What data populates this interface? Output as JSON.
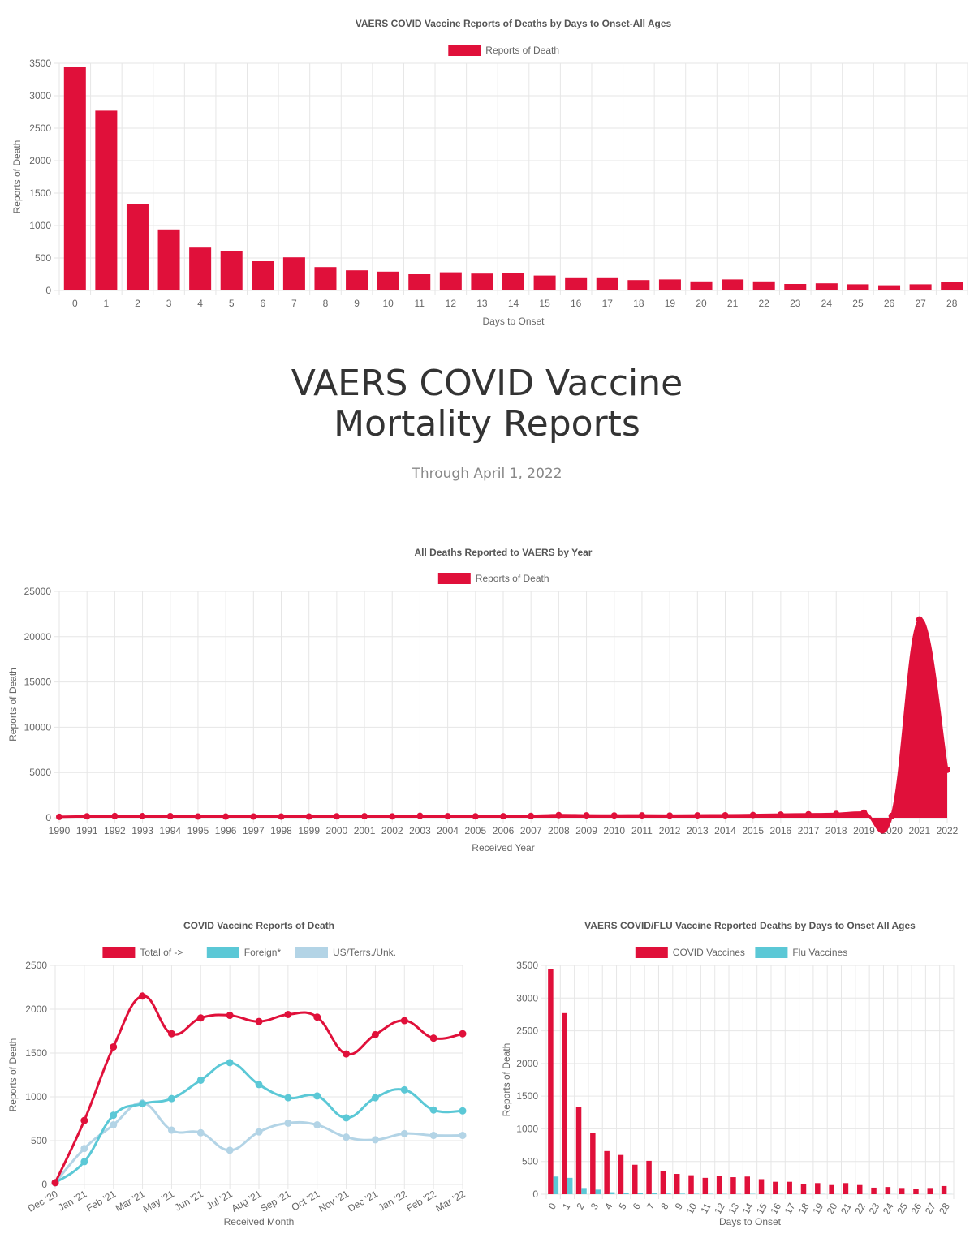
{
  "hero": {
    "title_line1": "VAERS COVID Vaccine",
    "title_line2": "Mortality Reports",
    "subtitle": "Through April 1, 2022"
  },
  "colors": {
    "red": "#e0103a",
    "cyan": "#5bc8d6",
    "light_blue": "#b3d4e6",
    "grid": "#e6e6e6"
  },
  "chart_data": [
    {
      "type": "bar",
      "title": "VAERS COVID Vaccine Reports of Deaths by Days to Onset-All Ages",
      "legend": [
        "Reports of Death"
      ],
      "xlabel": "Days to Onset",
      "ylabel": "Reports of Death",
      "ylim": [
        0,
        3500
      ],
      "yticks": [
        "0",
        "500",
        "1000",
        "1500",
        "2000",
        "2500",
        "3000",
        "3500"
      ],
      "categories": [
        "0",
        "1",
        "2",
        "3",
        "4",
        "5",
        "6",
        "7",
        "8",
        "9",
        "10",
        "11",
        "12",
        "13",
        "14",
        "15",
        "16",
        "17",
        "18",
        "19",
        "20",
        "21",
        "22",
        "23",
        "24",
        "25",
        "26",
        "27",
        "28"
      ],
      "series": [
        {
          "name": "Reports of Death",
          "color": "#e0103a",
          "values": [
            3450,
            2770,
            1330,
            940,
            660,
            600,
            450,
            510,
            360,
            310,
            290,
            250,
            280,
            260,
            270,
            230,
            190,
            190,
            160,
            170,
            140,
            170,
            140,
            100,
            110,
            95,
            80,
            95,
            125
          ]
        }
      ]
    },
    {
      "type": "area",
      "title": "All Deaths Reported to VAERS by Year",
      "legend": [
        "Reports of Death"
      ],
      "xlabel": "Received Year",
      "ylabel": "Reports of Death",
      "ylim": [
        0,
        25000
      ],
      "yticks": [
        "0",
        "5000",
        "10000",
        "15000",
        "20000",
        "25000"
      ],
      "categories": [
        "1990",
        "1991",
        "1992",
        "1993",
        "1994",
        "1995",
        "1996",
        "1997",
        "1998",
        "1999",
        "2000",
        "2001",
        "2002",
        "2003",
        "2004",
        "2005",
        "2006",
        "2007",
        "2008",
        "2009",
        "2010",
        "2011",
        "2012",
        "2013",
        "2014",
        "2015",
        "2016",
        "2017",
        "2018",
        "2019",
        "2020",
        "2021",
        "2022"
      ],
      "series": [
        {
          "name": "Reports of Death",
          "color": "#e0103a",
          "values": [
            100,
            160,
            190,
            180,
            180,
            140,
            130,
            140,
            130,
            140,
            160,
            170,
            150,
            210,
            170,
            160,
            170,
            200,
            290,
            260,
            250,
            260,
            240,
            260,
            270,
            300,
            350,
            380,
            430,
            560,
            200,
            21900,
            5300
          ]
        }
      ]
    },
    {
      "type": "line",
      "title": "COVID Vaccine Reports of Death",
      "legend": [
        "Total of ->",
        "Foreign*",
        "US/Terrs./Unk."
      ],
      "xlabel": "Received Month",
      "ylabel": "Reports of Death",
      "ylim": [
        0,
        2500
      ],
      "yticks": [
        "0",
        "500",
        "1000",
        "1500",
        "2000",
        "2500"
      ],
      "categories": [
        "Dec '20",
        "Jan '21",
        "Feb '21",
        "Mar '21",
        "May '21",
        "Jun '21",
        "Jul '21",
        "Aug '21",
        "Sep '21",
        "Oct '21",
        "Nov '21",
        "Dec '21",
        "Jan '22",
        "Feb '22",
        "Mar '22"
      ],
      "series": [
        {
          "name": "Total of ->",
          "color": "#e0103a",
          "values": [
            20,
            730,
            1570,
            2150,
            1720,
            1900,
            1930,
            1860,
            1940,
            1910,
            1490,
            1710,
            1870,
            1670,
            1720
          ]
        },
        {
          "name": "Foreign*",
          "color": "#5bc8d6",
          "values": [
            20,
            260,
            790,
            920,
            980,
            1190,
            1390,
            1140,
            990,
            1010,
            760,
            990,
            1080,
            850,
            840
          ]
        },
        {
          "name": "US/Terrs./Unk.",
          "color": "#b3d4e6",
          "values": [
            20,
            410,
            680,
            930,
            620,
            590,
            390,
            600,
            700,
            680,
            540,
            510,
            580,
            560,
            560
          ]
        }
      ]
    },
    {
      "type": "bar",
      "title": "VAERS COVID/FLU Vaccine Reported Deaths by Days to Onset All Ages",
      "legend": [
        "COVID Vaccines",
        "Flu Vaccines"
      ],
      "xlabel": "Days to Onset",
      "ylabel": "Reports of Death",
      "ylim": [
        0,
        3500
      ],
      "yticks": [
        "0",
        "500",
        "1000",
        "1500",
        "2000",
        "2500",
        "3000",
        "3500"
      ],
      "categories": [
        "0",
        "1",
        "2",
        "3",
        "4",
        "5",
        "6",
        "7",
        "8",
        "9",
        "10",
        "11",
        "12",
        "13",
        "14",
        "15",
        "16",
        "17",
        "18",
        "19",
        "20",
        "21",
        "22",
        "23",
        "24",
        "25",
        "26",
        "27",
        "28"
      ],
      "series": [
        {
          "name": "COVID Vaccines",
          "color": "#e0103a",
          "values": [
            3450,
            2770,
            1330,
            940,
            660,
            600,
            450,
            510,
            360,
            310,
            290,
            250,
            280,
            260,
            270,
            230,
            190,
            190,
            160,
            170,
            140,
            170,
            140,
            100,
            110,
            95,
            80,
            95,
            125
          ]
        },
        {
          "name": "Flu Vaccines",
          "color": "#5bc8d6",
          "values": [
            270,
            250,
            95,
            70,
            30,
            25,
            15,
            20,
            10,
            8,
            6,
            5,
            5,
            4,
            5,
            3,
            3,
            3,
            2,
            2,
            2,
            2,
            2,
            1,
            1,
            1,
            1,
            1,
            1
          ]
        }
      ]
    }
  ]
}
